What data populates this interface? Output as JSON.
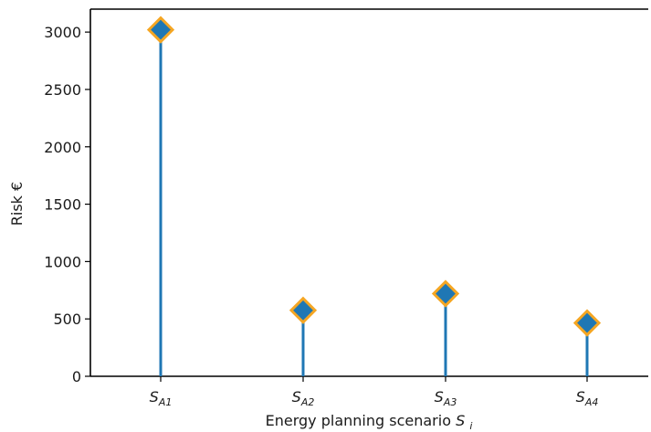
{
  "chart_data": {
    "type": "stem",
    "title": "",
    "xlabel": {
      "text": "Energy planning scenario ",
      "symbol": "S",
      "subscript": "i"
    },
    "ylabel": "Risk €",
    "ylim": [
      0,
      3200
    ],
    "yticks": [
      0,
      500,
      1000,
      1500,
      2000,
      2500,
      3000
    ],
    "categories": [
      {
        "base": "S",
        "sub": "A1"
      },
      {
        "base": "S",
        "sub": "A2"
      },
      {
        "base": "S",
        "sub": "A3"
      },
      {
        "base": "S",
        "sub": "A4"
      }
    ],
    "values": [
      3020,
      575,
      720,
      465
    ],
    "grid": false,
    "legend": "none",
    "colors": {
      "stem": "#1f77b4",
      "marker_fill": "#1f77b4",
      "marker_edge": "#f5a623",
      "axis": "#000000"
    }
  }
}
